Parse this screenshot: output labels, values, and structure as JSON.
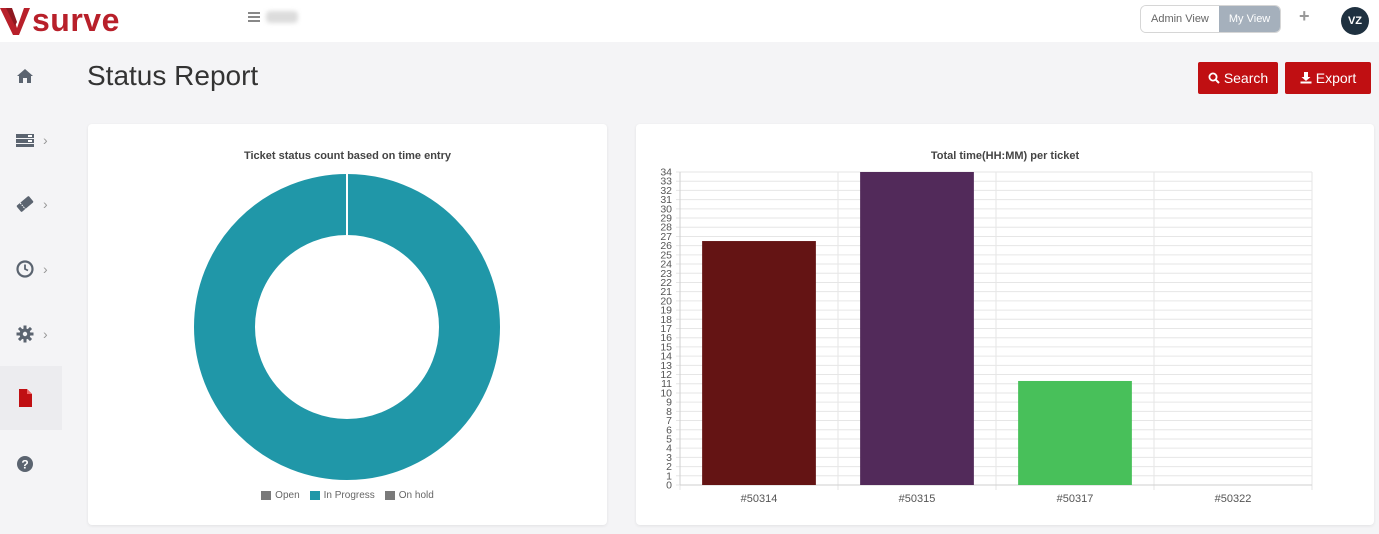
{
  "app": {
    "logo_text": "surve",
    "brand_color": "#b8202a"
  },
  "header": {
    "view_toggle": {
      "admin_label": "Admin View",
      "my_label": "My View",
      "active": "My View"
    },
    "avatar_initials": "VZ"
  },
  "sidebar": {
    "items": [
      {
        "icon": "home-icon"
      },
      {
        "icon": "server-icon"
      },
      {
        "icon": "ticket-icon"
      },
      {
        "icon": "clock-icon"
      },
      {
        "icon": "gear-icon"
      },
      {
        "icon": "report-file-icon",
        "active": true
      },
      {
        "icon": "help-icon"
      }
    ]
  },
  "page": {
    "title": "Status Report",
    "search_label": "Search",
    "export_label": "Export",
    "accent": "#c00f12"
  },
  "charts": {
    "donut_title": "Ticket status count based on  time entry",
    "bar_title": "Total time(HH:MM) per ticket"
  },
  "chart_data": [
    {
      "type": "pie",
      "variant": "doughnut",
      "title": "Ticket status count based on  time entry",
      "categories": [
        "Open",
        "In Progress",
        "On hold"
      ],
      "values": [
        0,
        1,
        0
      ],
      "colors": [
        "#7a7a7a",
        "#2097a8",
        "#7a7a7a"
      ],
      "legend": "bottom"
    },
    {
      "type": "bar",
      "title": "Total time(HH:MM) per ticket",
      "categories": [
        "#50314",
        "#50315",
        "#50317",
        "#50322"
      ],
      "values": [
        26.5,
        34,
        11.3,
        0
      ],
      "colors": [
        "#641414",
        "#522a5a",
        "#48c05a",
        "#cccccc"
      ],
      "ylim": [
        0,
        34
      ],
      "yticks": [
        0,
        1,
        2,
        3,
        4,
        5,
        6,
        7,
        8,
        9,
        10,
        11,
        12,
        13,
        14,
        15,
        16,
        17,
        18,
        19,
        20,
        21,
        22,
        23,
        24,
        25,
        26,
        27,
        28,
        29,
        30,
        31,
        32,
        33,
        34
      ],
      "grid": true
    }
  ]
}
